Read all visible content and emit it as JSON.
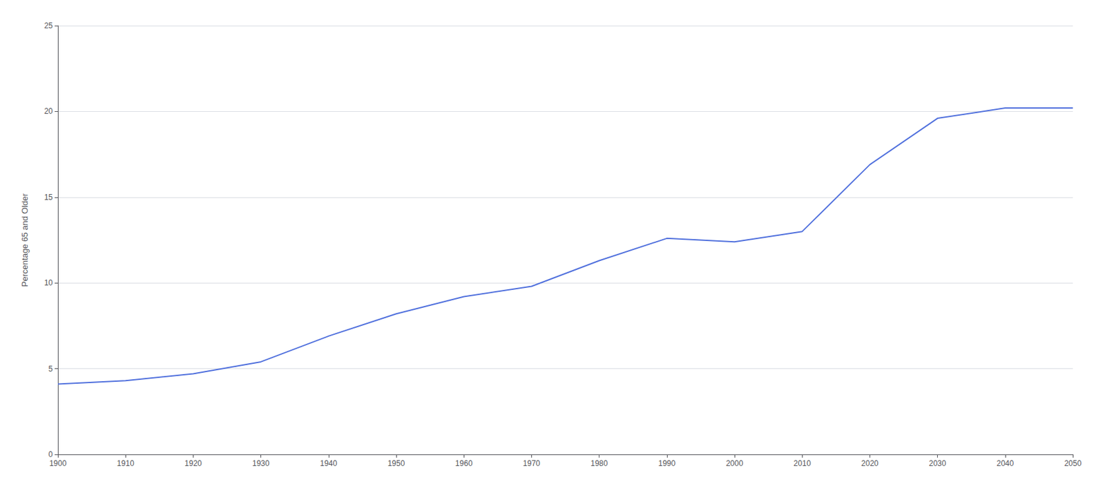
{
  "chart_data": {
    "type": "line",
    "ylabel": "Percentage 65 and Older",
    "x": [
      1900,
      1910,
      1920,
      1930,
      1940,
      1950,
      1960,
      1970,
      1980,
      1990,
      2000,
      2010,
      2020,
      2030,
      2040,
      2050
    ],
    "values": [
      4.1,
      4.3,
      4.7,
      5.4,
      6.9,
      8.2,
      9.2,
      9.8,
      11.3,
      12.6,
      12.4,
      13.0,
      16.9,
      19.6,
      20.2,
      20.2
    ],
    "xlim": [
      1900,
      2050
    ],
    "xticks": [
      1900,
      1910,
      1920,
      1930,
      1940,
      1950,
      1960,
      1970,
      1980,
      1990,
      2000,
      2010,
      2020,
      2030,
      2040,
      2050
    ],
    "ylim": [
      0,
      25
    ],
    "yticks": [
      0,
      5,
      10,
      15,
      20,
      25
    ],
    "grid": true
  }
}
